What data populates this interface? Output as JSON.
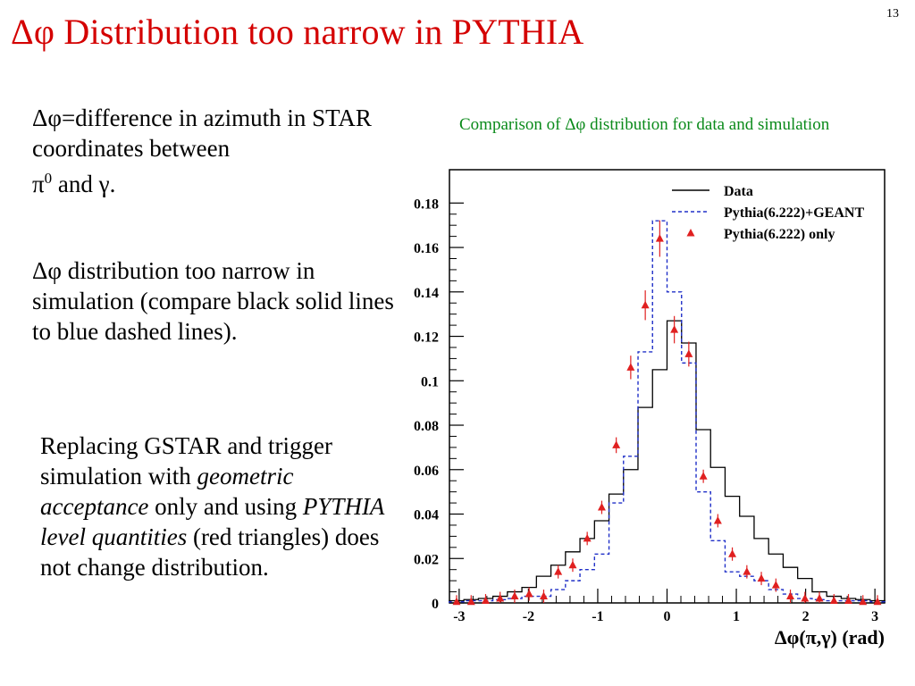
{
  "slide": {
    "number": "13",
    "title": "Δφ Distribution too narrow in PYTHIA",
    "bullets": {
      "b1": "Δφ=difference in azimuth in STAR coordinates between",
      "b1_pi": "π",
      "b1_sup": "0",
      "b1_and": " and ",
      "b1_gamma": "γ",
      "b1_end": ".",
      "b2": "Δφ distribution too narrow in simulation (compare black solid lines to blue dashed lines).",
      "b3_a": "Replacing GSTAR and trigger simulation with ",
      "b3_b": "geometric acceptance",
      "b3_c": " only and using ",
      "b3_d": "PYTHIA level quantities",
      "b3_e": " (red triangles) does not change distribution."
    },
    "caption": "Comparison of Δφ distribution for data and simulation"
  },
  "chart_data": {
    "type": "line",
    "xlabel": "Δφ(π,γ) (rad)",
    "ylabel": "",
    "xlim": [
      -3.14,
      3.14
    ],
    "ylim": [
      0,
      0.195
    ],
    "x_ticks": [
      "-3",
      "-2",
      "-1",
      "0",
      "1",
      "2",
      "3"
    ],
    "y_ticks": [
      "0",
      "0.02",
      "0.04",
      "0.06",
      "0.08",
      "0.1",
      "0.12",
      "0.14",
      "0.16",
      "0.18"
    ],
    "grid": false,
    "legend_position": "top-right",
    "bin_width": 0.209,
    "bin_centers": [
      -3.037,
      -2.827,
      -2.618,
      -2.409,
      -2.199,
      -1.99,
      -1.78,
      -1.571,
      -1.361,
      -1.152,
      -0.942,
      -0.733,
      -0.524,
      -0.314,
      -0.105,
      0.105,
      0.314,
      0.524,
      0.733,
      0.942,
      1.152,
      1.361,
      1.571,
      1.78,
      1.99,
      2.199,
      2.409,
      2.618,
      2.827,
      3.037
    ],
    "series": [
      {
        "name": "Data",
        "style": "solid-step",
        "color": "#000000",
        "values": [
          0.001,
          0.0015,
          0.002,
          0.003,
          0.005,
          0.007,
          0.012,
          0.017,
          0.023,
          0.029,
          0.037,
          0.049,
          0.06,
          0.088,
          0.105,
          0.127,
          0.117,
          0.078,
          0.061,
          0.048,
          0.039,
          0.029,
          0.022,
          0.016,
          0.011,
          0.005,
          0.003,
          0.002,
          0.0015,
          0.001
        ]
      },
      {
        "name": "Pythia(6.222)+GEANT",
        "style": "dashed-step",
        "color": "#2030c8",
        "values": [
          0.0005,
          0.001,
          0.001,
          0.0015,
          0.002,
          0.003,
          0.003,
          0.006,
          0.01,
          0.015,
          0.022,
          0.045,
          0.066,
          0.113,
          0.172,
          0.14,
          0.108,
          0.05,
          0.028,
          0.014,
          0.012,
          0.01,
          0.006,
          0.004,
          0.002,
          0.0015,
          0.001,
          0.001,
          0.001,
          0.0005
        ]
      },
      {
        "name": "Pythia(6.222) only",
        "style": "triangles",
        "color": "#e02020",
        "values": [
          0.0005,
          0.0005,
          0.001,
          0.002,
          0.003,
          0.004,
          0.003,
          0.014,
          0.017,
          0.029,
          0.043,
          0.071,
          0.106,
          0.134,
          0.164,
          0.123,
          0.112,
          0.057,
          0.037,
          0.022,
          0.014,
          0.011,
          0.008,
          0.003,
          0.002,
          0.002,
          0.001,
          0.001,
          0.0005,
          0.0005
        ]
      }
    ]
  }
}
